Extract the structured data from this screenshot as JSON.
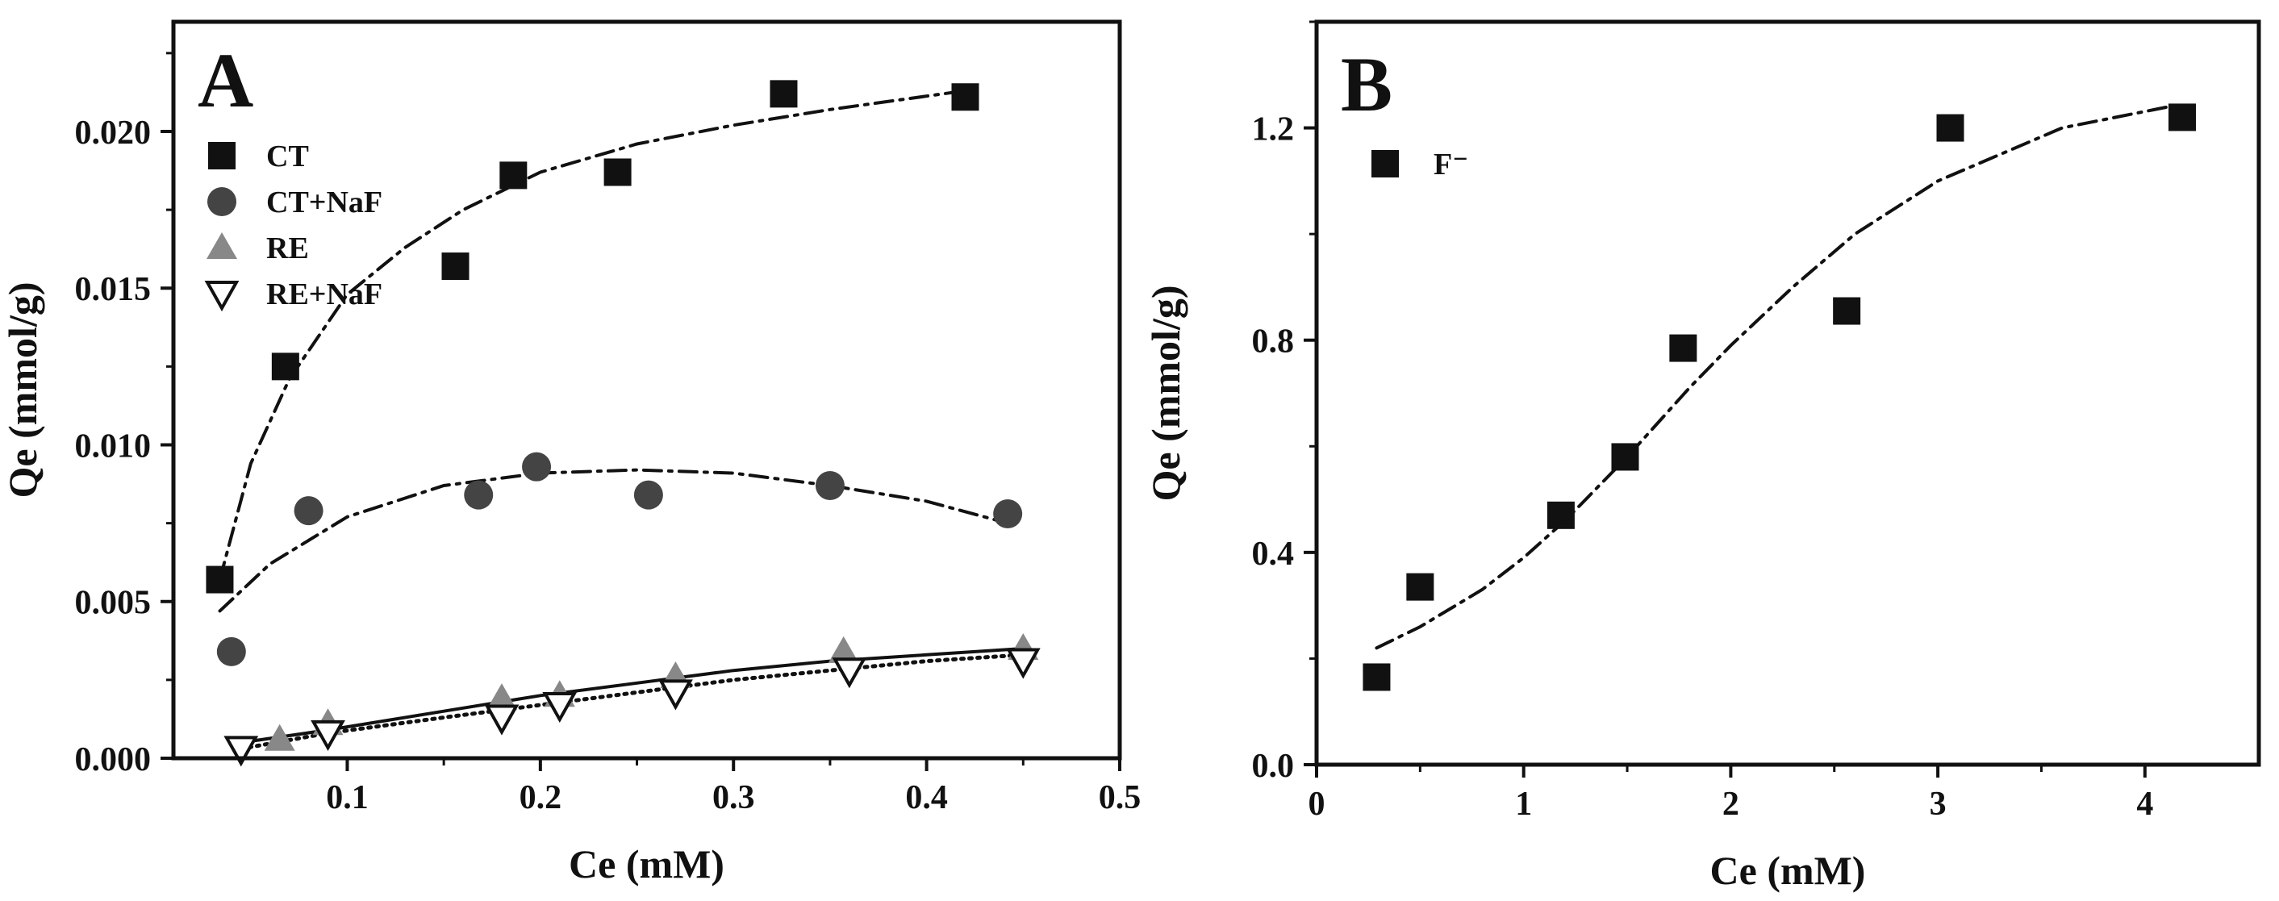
{
  "chart_data": [
    {
      "type": "scatter",
      "panel_label": "A",
      "xlabel": "Ce (mM)",
      "ylabel": "Qe (mmol/g)",
      "xlim": [
        0.01,
        0.5
      ],
      "ylim": [
        0,
        0.0235
      ],
      "xticks": [
        0.1,
        0.2,
        0.3,
        0.4,
        0.5
      ],
      "xtick_labels": [
        "0.1",
        "0.2",
        "0.3",
        "0.4",
        "0.5"
      ],
      "yticks": [
        0,
        0.005,
        0.01,
        0.015,
        0.02
      ],
      "ytick_labels": [
        "0.000",
        "0.005",
        "0.010",
        "0.015",
        "0.020"
      ],
      "legend_position": "top-left",
      "series": [
        {
          "name": "CT",
          "marker": "square",
          "color": "#111111",
          "points": [
            [
              0.034,
              0.0057
            ],
            [
              0.068,
              0.0125
            ],
            [
              0.156,
              0.0157
            ],
            [
              0.186,
              0.0186
            ],
            [
              0.24,
              0.0187
            ],
            [
              0.326,
              0.0212
            ],
            [
              0.42,
              0.0211
            ]
          ],
          "fit": {
            "style": "dashdot",
            "color": "#111111",
            "points": [
              [
                0.034,
                0.0057
              ],
              [
                0.05,
                0.0094
              ],
              [
                0.07,
                0.0121
              ],
              [
                0.1,
                0.0148
              ],
              [
                0.13,
                0.0163
              ],
              [
                0.16,
                0.0175
              ],
              [
                0.2,
                0.0187
              ],
              [
                0.25,
                0.0196
              ],
              [
                0.3,
                0.0202
              ],
              [
                0.35,
                0.0207
              ],
              [
                0.42,
                0.0213
              ]
            ]
          }
        },
        {
          "name": "CT+NaF",
          "marker": "circle",
          "color": "#444444",
          "points": [
            [
              0.04,
              0.0034
            ],
            [
              0.08,
              0.0079
            ],
            [
              0.168,
              0.0084
            ],
            [
              0.198,
              0.0093
            ],
            [
              0.256,
              0.0084
            ],
            [
              0.35,
              0.0087
            ],
            [
              0.442,
              0.0078
            ]
          ],
          "fit": {
            "style": "dashdot",
            "color": "#111111",
            "points": [
              [
                0.034,
                0.0047
              ],
              [
                0.06,
                0.0062
              ],
              [
                0.1,
                0.0077
              ],
              [
                0.15,
                0.0087
              ],
              [
                0.2,
                0.0091
              ],
              [
                0.25,
                0.0092
              ],
              [
                0.3,
                0.0091
              ],
              [
                0.35,
                0.0087
              ],
              [
                0.4,
                0.0082
              ],
              [
                0.442,
                0.0075
              ]
            ]
          }
        },
        {
          "name": "RE",
          "marker": "triangle-up",
          "color": "#888888",
          "points": [
            [
              0.065,
              0.0006
            ],
            [
              0.09,
              0.0011
            ],
            [
              0.18,
              0.0019
            ],
            [
              0.21,
              0.002
            ],
            [
              0.27,
              0.0026
            ],
            [
              0.357,
              0.0034
            ],
            [
              0.45,
              0.0035
            ]
          ],
          "fit": {
            "style": "solid",
            "color": "#111111",
            "points": [
              [
                0.045,
                0.0005
              ],
              [
                0.09,
                0.0009
              ],
              [
                0.15,
                0.0015
              ],
              [
                0.2,
                0.002
              ],
              [
                0.25,
                0.0024
              ],
              [
                0.3,
                0.0028
              ],
              [
                0.35,
                0.0031
              ],
              [
                0.4,
                0.0033
              ],
              [
                0.45,
                0.0035
              ]
            ]
          }
        },
        {
          "name": "RE+NaF",
          "marker": "triangle-down-open",
          "color": "#111111",
          "points": [
            [
              0.045,
              0.0003
            ],
            [
              0.09,
              0.0008
            ],
            [
              0.18,
              0.0013
            ],
            [
              0.21,
              0.0017
            ],
            [
              0.27,
              0.0021
            ],
            [
              0.36,
              0.0028
            ],
            [
              0.45,
              0.0031
            ]
          ],
          "fit": {
            "style": "dotted",
            "color": "#111111",
            "points": [
              [
                0.045,
                0.0003
              ],
              [
                0.09,
                0.0008
              ],
              [
                0.15,
                0.0013
              ],
              [
                0.2,
                0.0017
              ],
              [
                0.25,
                0.0021
              ],
              [
                0.3,
                0.0025
              ],
              [
                0.35,
                0.0028
              ],
              [
                0.4,
                0.0031
              ],
              [
                0.45,
                0.0033
              ]
            ]
          }
        }
      ]
    },
    {
      "type": "scatter",
      "panel_label": "B",
      "xlabel": "Ce (mM)",
      "ylabel": "Qe (mmol/g)",
      "xlim": [
        0,
        4.55
      ],
      "ylim": [
        0,
        1.4
      ],
      "xticks": [
        0,
        1,
        2,
        3,
        4
      ],
      "xtick_labels": [
        "0",
        "1",
        "2",
        "3",
        "4"
      ],
      "yticks": [
        0,
        0.4,
        0.8,
        1.2
      ],
      "ytick_labels": [
        "0.0",
        "0.4",
        "0.8",
        "1.2"
      ],
      "legend_position": "top-left",
      "series": [
        {
          "name": "F⁻",
          "marker": "square",
          "color": "#111111",
          "points": [
            [
              0.29,
              0.165
            ],
            [
              0.5,
              0.335
            ],
            [
              1.18,
              0.47
            ],
            [
              1.49,
              0.58
            ],
            [
              1.77,
              0.785
            ],
            [
              2.56,
              0.855
            ],
            [
              3.06,
              1.2
            ],
            [
              4.18,
              1.22
            ]
          ],
          "fit": {
            "style": "dashdot",
            "color": "#111111",
            "points": [
              [
                0.29,
                0.22
              ],
              [
                0.5,
                0.26
              ],
              [
                0.8,
                0.33
              ],
              [
                1.0,
                0.39
              ],
              [
                1.2,
                0.46
              ],
              [
                1.5,
                0.58
              ],
              [
                1.8,
                0.71
              ],
              [
                2.0,
                0.79
              ],
              [
                2.3,
                0.9
              ],
              [
                2.6,
                1.0
              ],
              [
                3.0,
                1.1
              ],
              [
                3.3,
                1.15
              ],
              [
                3.6,
                1.2
              ],
              [
                4.18,
                1.245
              ]
            ]
          }
        }
      ]
    }
  ]
}
